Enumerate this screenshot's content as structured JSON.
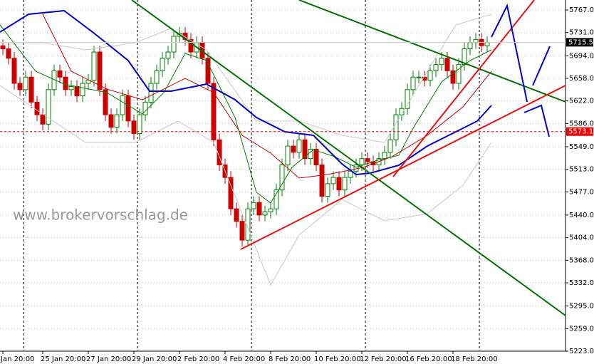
{
  "chart_data": {
    "type": "candlestick",
    "watermark": "www.brokervorschlag.de",
    "categories": [
      "Jan 20:00",
      null,
      null,
      null,
      null,
      null,
      null,
      "25 Jan 20:00",
      null,
      null,
      null,
      null,
      null,
      null,
      null,
      "27 Jan 20:00",
      null,
      null,
      null,
      null,
      null,
      null,
      null,
      "29 Jan 20:00",
      null,
      null,
      null,
      null,
      null,
      null,
      null,
      "2 Feb 20:00",
      null,
      null,
      null,
      null,
      null,
      null,
      null,
      "4 Feb 20:00",
      null,
      null,
      null,
      null,
      null,
      null,
      null,
      "8 Feb 20:00",
      null,
      null,
      null,
      null,
      null,
      null,
      null,
      "10 Feb 20:00",
      null,
      null,
      null,
      null,
      null,
      null,
      null,
      "12 Feb 20:00",
      null,
      null,
      null,
      null,
      null,
      null,
      null,
      "16 Feb 20:00",
      null,
      null,
      null,
      null,
      null,
      null,
      null,
      "18 Feb 20:00",
      null,
      null,
      null,
      null,
      null,
      null
    ],
    "open": [
      5710,
      5705,
      5690,
      5650,
      5640,
      5660,
      5620,
      5600,
      5585,
      5640,
      5670,
      5660,
      5640,
      5645,
      5630,
      5650,
      5655,
      5700,
      5640,
      5600,
      5580,
      5600,
      5630,
      5590,
      5570,
      5600,
      5620,
      5650,
      5670,
      5690,
      5700,
      5725,
      5730,
      5720,
      5700,
      5715,
      5690,
      5650,
      5560,
      5520,
      5500,
      5450,
      5430,
      5400,
      5450,
      5460,
      5440,
      5445,
      5450,
      5480,
      5520,
      5550,
      5540,
      5560,
      5530,
      5545,
      5520,
      5470,
      5490,
      5500,
      5480,
      5500,
      5510,
      5520,
      5530,
      5525,
      5520,
      5530,
      5540,
      5560,
      5600,
      5610,
      5640,
      5660,
      5660,
      5655,
      5670,
      5680,
      5690,
      5670,
      5650,
      5680,
      5705,
      5715,
      5720,
      5710
    ],
    "high": [
      5720,
      5715,
      5700,
      5660,
      5670,
      5670,
      5630,
      5610,
      5650,
      5680,
      5680,
      5670,
      5655,
      5655,
      5660,
      5665,
      5710,
      5710,
      5650,
      5610,
      5610,
      5640,
      5640,
      5600,
      5610,
      5630,
      5660,
      5680,
      5700,
      5710,
      5735,
      5740,
      5740,
      5730,
      5725,
      5725,
      5700,
      5660,
      5570,
      5530,
      5510,
      5460,
      5440,
      5460,
      5470,
      5470,
      5455,
      5460,
      5490,
      5530,
      5560,
      5560,
      5570,
      5570,
      5555,
      5555,
      5530,
      5500,
      5510,
      5510,
      5510,
      5520,
      5530,
      5540,
      5540,
      5535,
      5540,
      5550,
      5570,
      5610,
      5620,
      5650,
      5670,
      5670,
      5670,
      5680,
      5690,
      5700,
      5700,
      5680,
      5690,
      5715,
      5725,
      5730,
      5730,
      5725
    ],
    "low": [
      5695,
      5680,
      5640,
      5630,
      5630,
      5610,
      5590,
      5575,
      5575,
      5630,
      5650,
      5630,
      5630,
      5620,
      5620,
      5640,
      5645,
      5630,
      5590,
      5570,
      5570,
      5590,
      5580,
      5560,
      5560,
      5590,
      5610,
      5640,
      5660,
      5680,
      5690,
      5715,
      5710,
      5690,
      5690,
      5680,
      5640,
      5550,
      5510,
      5490,
      5440,
      5420,
      5390,
      5390,
      5440,
      5430,
      5430,
      5435,
      5440,
      5470,
      5510,
      5530,
      5530,
      5520,
      5520,
      5510,
      5460,
      5460,
      5480,
      5470,
      5470,
      5490,
      5500,
      5510,
      5515,
      5510,
      5510,
      5520,
      5530,
      5550,
      5590,
      5600,
      5630,
      5650,
      5645,
      5645,
      5660,
      5670,
      5660,
      5640,
      5640,
      5670,
      5695,
      5705,
      5700,
      5700
    ],
    "close": [
      5705,
      5690,
      5650,
      5640,
      5660,
      5620,
      5600,
      5585,
      5640,
      5670,
      5660,
      5640,
      5645,
      5630,
      5650,
      5655,
      5700,
      5640,
      5600,
      5580,
      5600,
      5630,
      5590,
      5570,
      5600,
      5620,
      5650,
      5670,
      5690,
      5700,
      5725,
      5730,
      5720,
      5700,
      5715,
      5690,
      5650,
      5560,
      5520,
      5500,
      5450,
      5430,
      5400,
      5450,
      5460,
      5440,
      5445,
      5450,
      5480,
      5520,
      5550,
      5540,
      5560,
      5530,
      5545,
      5520,
      5470,
      5490,
      5500,
      5480,
      5500,
      5510,
      5520,
      5530,
      5525,
      5520,
      5530,
      5540,
      5560,
      5600,
      5610,
      5640,
      5660,
      5660,
      5655,
      5670,
      5680,
      5690,
      5670,
      5650,
      5680,
      5705,
      5715,
      5720,
      5710,
      5715
    ],
    "up_color": "#008000",
    "down_color": "#cc0000",
    "ylim": [
      5223,
      5767
    ],
    "yticks": [
      {
        "value": 5767,
        "label": "5767.0"
      },
      {
        "value": 5731,
        "label": "5731.0"
      },
      {
        "value": 5694,
        "label": "5694.0"
      },
      {
        "value": 5658,
        "label": "5658.0"
      },
      {
        "value": 5622,
        "label": "5622.0"
      },
      {
        "value": 5586,
        "label": "5586.0"
      },
      {
        "value": 5549,
        "label": "5549.0"
      },
      {
        "value": 5513,
        "label": "5513.0"
      },
      {
        "value": 5477,
        "label": "5477.0"
      },
      {
        "value": 5440,
        "label": "5440.0"
      },
      {
        "value": 5404,
        "label": "5404.0"
      },
      {
        "value": 5368,
        "label": "5368.0"
      },
      {
        "value": 5332,
        "label": "5332.0"
      },
      {
        "value": 5295,
        "label": "5295.0"
      },
      {
        "value": 5259,
        "label": "5259.0"
      },
      {
        "value": 5223,
        "label": "5223.0"
      }
    ],
    "last_price": 5715.5,
    "level_line": 5573.1,
    "grid": true
  }
}
